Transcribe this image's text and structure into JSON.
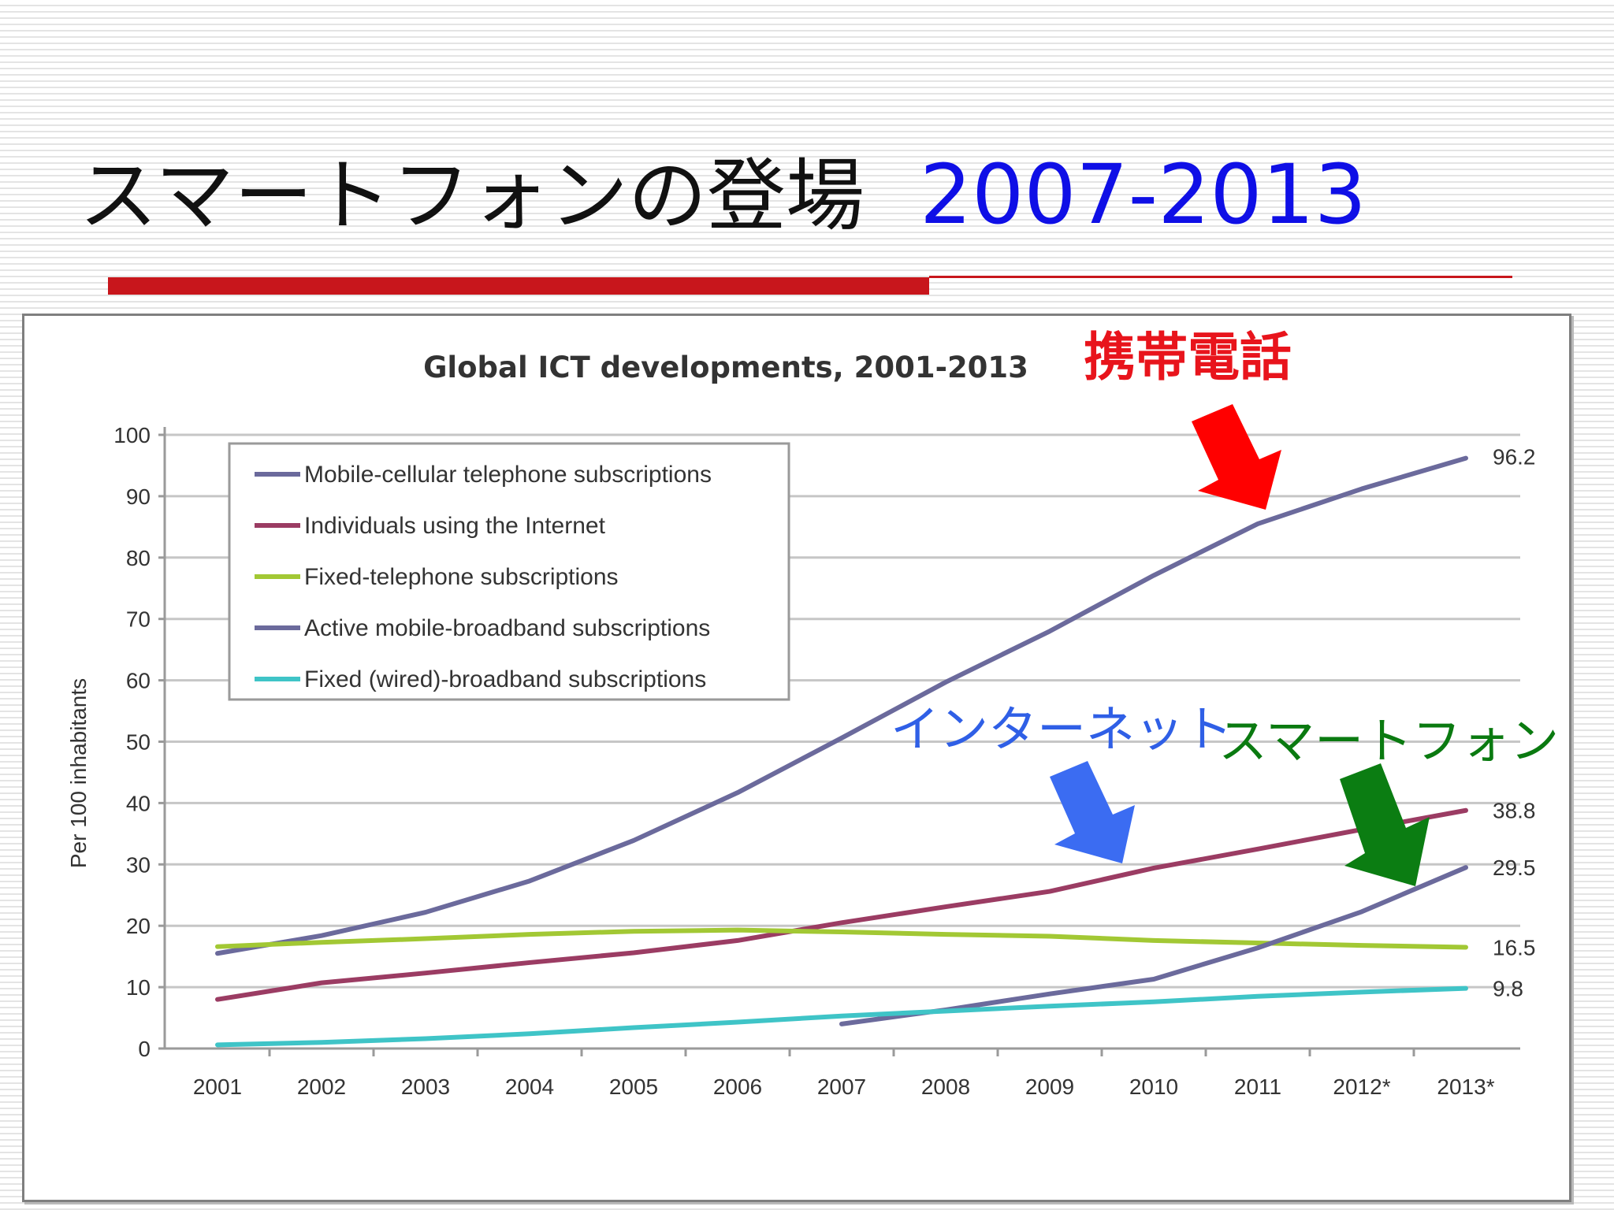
{
  "slide": {
    "title_text": "スマートフォンの登場",
    "title_years": "2007-2013",
    "title_years_color": "#0f0fe6",
    "rule_color": "#c8161c"
  },
  "annotations": [
    {
      "id": "mobile",
      "text": "携帯電話",
      "color": "#e8141c"
    },
    {
      "id": "internet",
      "text": "インターネット",
      "color": "#2f5fe6"
    },
    {
      "id": "smartphone",
      "text": "スマートフォン",
      "color": "#0a7a10"
    }
  ],
  "chart_data": {
    "type": "line",
    "title": "Global ICT developments, 2001-2013",
    "xlabel": "",
    "ylabel": "Per 100 inhabitants",
    "categories": [
      "2001",
      "2002",
      "2003",
      "2004",
      "2005",
      "2006",
      "2007",
      "2008",
      "2009",
      "2010",
      "2011",
      "2012*",
      "2013*"
    ],
    "ylim": [
      0,
      100
    ],
    "yticks": [
      0,
      10,
      20,
      30,
      40,
      50,
      60,
      70,
      80,
      90,
      100
    ],
    "grid": true,
    "legend_position": "top-left",
    "series": [
      {
        "name": "Mobile-cellular telephone subscriptions",
        "color": "#6b6a9c",
        "values": [
          15.5,
          18.4,
          22.2,
          27.3,
          33.9,
          41.7,
          50.6,
          59.7,
          68.0,
          77.1,
          85.5,
          91.2,
          96.2
        ],
        "end_label": "96.2"
      },
      {
        "name": "Individuals using the Internet",
        "color": "#9b3c63",
        "values": [
          8.0,
          10.7,
          12.3,
          14.0,
          15.6,
          17.6,
          20.5,
          23.1,
          25.6,
          29.4,
          32.5,
          35.7,
          38.8
        ],
        "end_label": "38.8"
      },
      {
        "name": "Fixed-telephone subscriptions",
        "color": "#a2c834",
        "values": [
          16.6,
          17.3,
          17.9,
          18.6,
          19.1,
          19.3,
          19.0,
          18.6,
          18.3,
          17.6,
          17.2,
          16.8,
          16.5
        ],
        "end_label": "16.5"
      },
      {
        "name": "Active mobile-broadband subscriptions",
        "color": "#6b6a9c",
        "values": [
          null,
          null,
          null,
          null,
          null,
          null,
          4.0,
          6.3,
          8.9,
          11.3,
          16.4,
          22.3,
          29.5
        ],
        "end_label": "29.5"
      },
      {
        "name": "Fixed (wired)-broadband subscriptions",
        "color": "#3fc4c7",
        "values": [
          0.6,
          1.0,
          1.6,
          2.4,
          3.4,
          4.3,
          5.3,
          6.1,
          6.9,
          7.6,
          8.5,
          9.2,
          9.8
        ],
        "end_label": "9.8"
      }
    ]
  }
}
